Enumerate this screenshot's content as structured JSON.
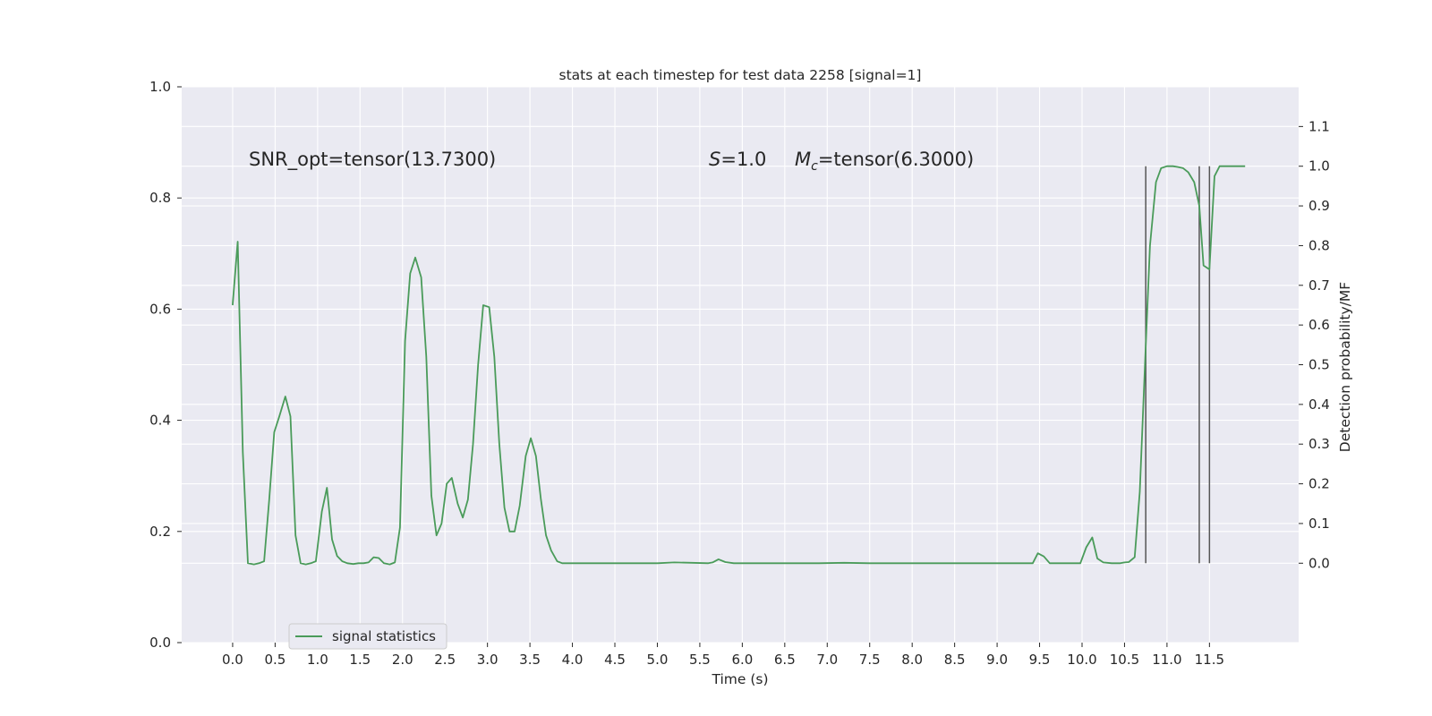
{
  "chart_data": {
    "type": "line",
    "title": "stats at each timestep for test data 2258 [signal=1]",
    "xlabel": "Time (s)",
    "ylabel_left": "",
    "ylabel_right": "Detection probability/MF",
    "xlim": [
      -0.6,
      12.55
    ],
    "ylim_left": [
      0.0,
      1.0
    ],
    "ylim_right": [
      -0.2,
      1.2
    ],
    "grid": true,
    "x_ticks": [
      "0.0",
      "0.5",
      "1.0",
      "1.5",
      "2.0",
      "2.5",
      "3.0",
      "3.5",
      "4.0",
      "4.5",
      "5.0",
      "5.5",
      "6.0",
      "6.5",
      "7.0",
      "7.5",
      "8.0",
      "8.5",
      "9.0",
      "9.5",
      "10.0",
      "10.5",
      "11.0",
      "11.5"
    ],
    "y_left_ticks": [
      "0.0",
      "0.2",
      "0.4",
      "0.6",
      "0.8",
      "1.0"
    ],
    "y_right_ticks": [
      "0.0",
      "0.1",
      "0.2",
      "0.3",
      "0.4",
      "0.5",
      "0.6",
      "0.7",
      "0.8",
      "0.9",
      "1.0",
      "1.1"
    ],
    "annotations": {
      "snr": "SNR_opt=tensor(13.7300)",
      "s_prefix": "S",
      "s_value": "=1.0",
      "mc_prefix": "M",
      "mc_sub": "c",
      "mc_value": "=tensor(6.3000)"
    },
    "vlines": [
      10.75,
      11.38,
      11.5
    ],
    "vline_range_right": [
      0.0,
      1.0
    ],
    "legend": {
      "label": "signal statistics",
      "placement": "lower-left"
    },
    "series": [
      {
        "name": "signal statistics",
        "axis": "right",
        "color": "#4a9b5a",
        "x": [
          0.0,
          0.06,
          0.12,
          0.18,
          0.25,
          0.31,
          0.37,
          0.43,
          0.49,
          0.55,
          0.62,
          0.68,
          0.74,
          0.8,
          0.86,
          0.92,
          0.98,
          1.05,
          1.11,
          1.17,
          1.23,
          1.29,
          1.35,
          1.42,
          1.48,
          1.54,
          1.6,
          1.66,
          1.72,
          1.78,
          1.85,
          1.91,
          1.97,
          2.03,
          2.09,
          2.15,
          2.22,
          2.28,
          2.34,
          2.4,
          2.46,
          2.52,
          2.58,
          2.65,
          2.71,
          2.77,
          2.83,
          2.89,
          2.95,
          3.02,
          3.08,
          3.14,
          3.2,
          3.26,
          3.32,
          3.38,
          3.45,
          3.51,
          3.57,
          3.63,
          3.69,
          3.75,
          3.82,
          3.88,
          3.94,
          4.0,
          4.06,
          4.12,
          4.2,
          4.4,
          4.6,
          4.8,
          5.0,
          5.2,
          5.4,
          5.6,
          5.65,
          5.72,
          5.8,
          5.9,
          6.0,
          6.3,
          6.6,
          6.9,
          7.2,
          7.5,
          7.8,
          8.1,
          8.4,
          8.7,
          9.0,
          9.2,
          9.35,
          9.42,
          9.48,
          9.55,
          9.62,
          9.7,
          9.85,
          9.98,
          10.05,
          10.12,
          10.18,
          10.25,
          10.35,
          10.45,
          10.5,
          10.55,
          10.62,
          10.68,
          10.75,
          10.8,
          10.87,
          10.93,
          11.0,
          11.07,
          11.13,
          11.19,
          11.25,
          11.32,
          11.38,
          11.43,
          11.5,
          11.56,
          11.62,
          11.7,
          11.8,
          11.92
        ],
        "y": [
          0.65,
          0.81,
          0.28,
          0.0,
          -0.003,
          0.0,
          0.005,
          0.16,
          0.33,
          0.37,
          0.42,
          0.37,
          0.07,
          0.0,
          -0.003,
          0.0,
          0.005,
          0.13,
          0.19,
          0.06,
          0.018,
          0.005,
          0.0,
          -0.002,
          0.0,
          0.0,
          0.002,
          0.015,
          0.013,
          0.0,
          -0.003,
          0.002,
          0.09,
          0.56,
          0.73,
          0.77,
          0.72,
          0.52,
          0.17,
          0.07,
          0.1,
          0.2,
          0.215,
          0.15,
          0.115,
          0.16,
          0.3,
          0.5,
          0.65,
          0.645,
          0.52,
          0.3,
          0.14,
          0.08,
          0.08,
          0.145,
          0.27,
          0.315,
          0.27,
          0.16,
          0.07,
          0.032,
          0.005,
          0.0,
          0.0,
          0.0,
          0.0,
          0.0,
          0.0,
          0.0,
          0.0,
          0.0,
          0.0,
          0.002,
          0.001,
          0.0,
          0.002,
          0.01,
          0.003,
          0.0,
          0.0,
          0.0,
          0.0,
          0.0,
          0.001,
          0.0,
          0.0,
          0.0,
          0.0,
          0.0,
          0.0,
          0.0,
          0.0,
          0.0,
          0.025,
          0.017,
          0.0,
          0.0,
          0.0,
          0.0,
          0.04,
          0.065,
          0.012,
          0.002,
          0.0,
          0.0,
          0.002,
          0.003,
          0.015,
          0.18,
          0.55,
          0.8,
          0.96,
          0.995,
          1.0,
          1.0,
          0.998,
          0.995,
          0.985,
          0.96,
          0.9,
          0.75,
          0.74,
          0.975,
          1.0,
          1.0,
          1.0,
          1.0
        ]
      }
    ]
  }
}
